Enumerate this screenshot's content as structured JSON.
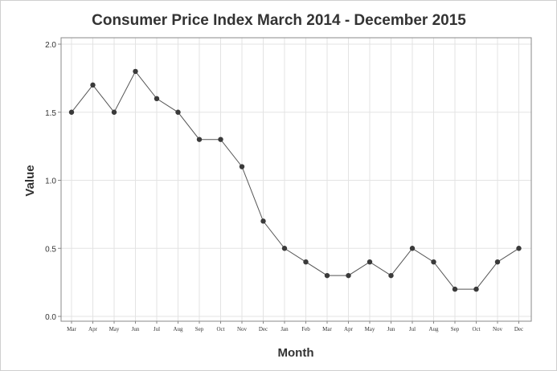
{
  "chart_data": {
    "type": "line",
    "title": "Consumer Price Index March 2014 - December 2015",
    "xlabel": "Month",
    "ylabel": "Value",
    "ylim": [
      0.0,
      2.0
    ],
    "yticks": [
      "0.0",
      "0.5",
      "1.0",
      "1.5",
      "2.0"
    ],
    "grid": true,
    "legend": "none",
    "categories": [
      "Mar",
      "Apr",
      "May",
      "Jun",
      "Jul",
      "Aug",
      "Sep",
      "Oct",
      "Nov",
      "Dec",
      "Jan",
      "Feb",
      "Mar",
      "Apr",
      "May",
      "Jun",
      "Jul",
      "Aug",
      "Sep",
      "Oct",
      "Nov",
      "Dec"
    ],
    "values": [
      1.5,
      1.7,
      1.5,
      1.8,
      1.6,
      1.5,
      1.3,
      1.3,
      1.1,
      0.7,
      0.5,
      0.4,
      0.3,
      0.3,
      0.4,
      0.3,
      0.5,
      0.4,
      0.2,
      0.2,
      0.4,
      0.5
    ],
    "colors": {
      "line": "#555555",
      "marker": "#3a3a3a",
      "grid": "#e3e3e3",
      "axis": "#888888",
      "text": "#333333"
    }
  }
}
